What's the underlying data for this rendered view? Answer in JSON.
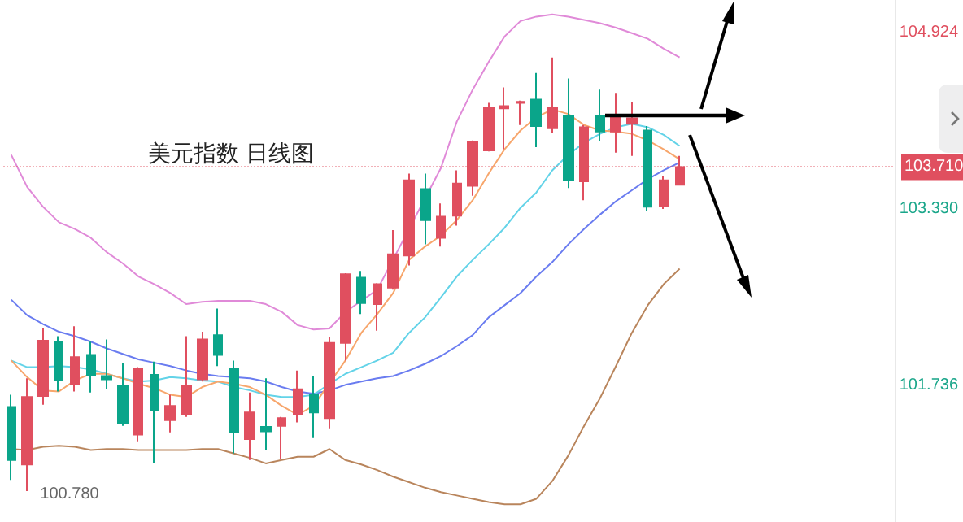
{
  "chart_data": {
    "type": "candlestick",
    "title": "美元指数 日线图",
    "categories": [
      null,
      null,
      null,
      null,
      null,
      null,
      null,
      null,
      null,
      null,
      null,
      null,
      null,
      null,
      null,
      null,
      null,
      null,
      null,
      null,
      null,
      null,
      null,
      null,
      null,
      null,
      null,
      null,
      null,
      null,
      null,
      null,
      null,
      null,
      null,
      null,
      null,
      null,
      null,
      null,
      null,
      null,
      null,
      null,
      null,
      null,
      null,
      null,
      null,
      null,
      null,
      null,
      null,
      null,
      null,
      null
    ],
    "ohlc": [
      [
        101.54,
        101.65,
        100.88,
        101.06
      ],
      [
        101.02,
        101.8,
        100.78,
        101.63
      ],
      [
        101.64,
        102.25,
        101.56,
        102.14
      ],
      [
        102.13,
        102.18,
        101.68,
        101.78
      ],
      [
        101.75,
        102.27,
        101.68,
        101.99
      ],
      [
        102.01,
        102.13,
        101.67,
        101.83
      ],
      [
        101.82,
        102.15,
        101.7,
        101.79
      ],
      [
        101.73,
        101.94,
        101.37,
        101.39
      ],
      [
        101.29,
        101.9,
        101.23,
        101.89
      ],
      [
        101.83,
        101.95,
        101.03,
        101.51
      ],
      [
        101.42,
        101.65,
        101.31,
        101.55
      ],
      [
        101.47,
        102.18,
        101.45,
        101.73
      ],
      [
        101.79,
        102.22,
        101.77,
        102.15
      ],
      [
        102.19,
        102.43,
        101.91,
        102.01
      ],
      [
        101.89,
        101.96,
        101.12,
        101.31
      ],
      [
        101.25,
        101.67,
        101.06,
        101.49
      ],
      [
        101.36,
        101.8,
        101.15,
        101.32
      ],
      [
        101.37,
        101.45,
        101.07,
        101.44
      ],
      [
        101.47,
        101.87,
        101.4,
        101.7
      ],
      [
        101.65,
        101.82,
        101.26,
        101.49
      ],
      [
        101.44,
        102.17,
        101.34,
        102.12
      ],
      [
        102.12,
        102.75,
        101.96,
        102.74
      ],
      [
        102.71,
        102.77,
        102.38,
        102.48
      ],
      [
        102.47,
        102.66,
        102.23,
        102.65
      ],
      [
        102.62,
        103.14,
        102.6,
        102.92
      ],
      [
        102.91,
        103.65,
        102.82,
        103.59
      ],
      [
        103.51,
        103.65,
        103.01,
        103.23
      ],
      [
        103.07,
        103.38,
        102.99,
        103.26
      ],
      [
        103.27,
        103.68,
        103.18,
        103.56
      ],
      [
        103.54,
        103.95,
        103.45,
        103.94
      ],
      [
        103.86,
        104.29,
        103.85,
        104.25
      ],
      [
        104.24,
        104.43,
        103.87,
        104.26
      ],
      [
        104.29,
        104.31,
        104.09,
        104.3
      ],
      [
        104.32,
        104.56,
        103.89,
        104.08
      ],
      [
        104.06,
        104.7,
        104.02,
        104.25
      ],
      [
        104.17,
        104.51,
        103.52,
        103.59
      ],
      [
        103.58,
        104.09,
        103.41,
        104.07
      ],
      [
        104.17,
        104.41,
        103.94,
        104.03
      ],
      [
        104.03,
        104.38,
        103.84,
        104.17
      ],
      [
        104.1,
        104.3,
        103.81,
        104.15
      ],
      [
        104.04,
        104.08,
        103.31,
        103.35
      ],
      [
        103.36,
        103.63,
        103.33,
        103.59
      ],
      [
        103.55,
        103.81,
        103.55,
        103.71
      ],
      null,
      null,
      null,
      null,
      null,
      null,
      null,
      null,
      null,
      null,
      null,
      null,
      null
    ],
    "colors": [
      "#0aa58a",
      "#e04f5f",
      "#e04f5f",
      "#0aa58a",
      "#e04f5f",
      "#0aa58a",
      "#0aa58a",
      "#0aa58a",
      "#e04f5f",
      "#0aa58a",
      "#e04f5f",
      "#e04f5f",
      "#e04f5f",
      "#0aa58a",
      "#0aa58a",
      "#e04f5f",
      "#0aa58a",
      "#e04f5f",
      "#e04f5f",
      "#0aa58a",
      "#e04f5f",
      "#e04f5f",
      "#0aa58a",
      "#e04f5f",
      "#e04f5f",
      "#e04f5f",
      "#0aa58a",
      "#e04f5f",
      "#e04f5f",
      "#e04f5f",
      "#e04f5f",
      "#e04f5f",
      "#e04f5f",
      "#0aa58a",
      "#e04f5f",
      "#0aa58a",
      "#e04f5f",
      "#0aa58a",
      "#e04f5f",
      "#e04f5f",
      "#0aa58a",
      "#e04f5f",
      "#e04f5f",
      null,
      null,
      null,
      null,
      null,
      null,
      null,
      null,
      null,
      null,
      null,
      null,
      null
    ],
    "series": [
      {
        "type": "line",
        "color": "#e08ad8",
        "values": [
          103.82,
          103.53,
          103.35,
          103.21,
          103.15,
          103.07,
          102.94,
          102.84,
          102.72,
          102.65,
          102.57,
          102.47,
          102.49,
          102.5,
          102.5,
          102.5,
          102.47,
          102.4,
          102.28,
          102.24,
          102.25,
          102.4,
          102.5,
          102.6,
          null,
          null,
          null,
          103.7,
          104.12,
          104.41,
          104.66,
          104.89,
          105.03,
          105.07,
          105.09,
          105.07,
          105.04,
          105.01,
          104.97,
          104.92,
          104.87,
          104.78,
          104.7,
          null,
          null,
          null,
          null,
          null,
          null,
          null,
          null,
          null,
          null,
          null,
          null,
          null
        ]
      },
      {
        "type": "line",
        "color": "#b9855c",
        "values": [
          101.16,
          101.15,
          101.18,
          101.19,
          101.18,
          101.15,
          101.16,
          101.16,
          101.15,
          101.15,
          101.15,
          101.15,
          101.16,
          101.16,
          101.12,
          101.08,
          101.03,
          101.06,
          101.09,
          101.09,
          101.16,
          101.06,
          101.02,
          100.97,
          100.91,
          100.86,
          100.81,
          100.77,
          100.74,
          100.71,
          100.68,
          100.66,
          100.66,
          100.71,
          100.87,
          101.1,
          101.37,
          101.62,
          101.91,
          102.21,
          102.46,
          102.65,
          102.79,
          null,
          null,
          null,
          null,
          null,
          null,
          null,
          null,
          null,
          null,
          null,
          null,
          null
        ]
      },
      {
        "type": "line",
        "color": "#6a7cf0",
        "values": [
          102.51,
          102.37,
          102.29,
          102.22,
          102.18,
          102.13,
          102.07,
          102.02,
          101.97,
          101.94,
          101.91,
          101.87,
          101.84,
          101.82,
          101.81,
          101.8,
          101.77,
          101.72,
          101.68,
          101.66,
          101.69,
          101.74,
          101.77,
          101.8,
          101.82,
          101.87,
          101.93,
          102.0,
          102.09,
          102.19,
          102.35,
          102.46,
          102.57,
          102.72,
          102.85,
          103.01,
          103.15,
          103.28,
          103.4,
          103.5,
          103.6,
          103.68,
          103.75,
          null,
          null,
          null,
          null,
          null,
          null,
          null,
          null,
          null,
          null,
          null,
          null,
          null
        ]
      },
      {
        "type": "line",
        "color": "#63d3e8",
        "values": [
          101.96,
          101.9,
          101.9,
          101.91,
          101.9,
          101.88,
          101.84,
          101.8,
          101.77,
          101.78,
          101.81,
          101.8,
          101.78,
          101.77,
          101.72,
          101.69,
          101.65,
          101.63,
          101.63,
          101.65,
          101.75,
          101.84,
          101.9,
          101.96,
          102.03,
          102.21,
          102.35,
          102.53,
          102.72,
          102.87,
          103.01,
          103.16,
          103.34,
          103.48,
          103.68,
          103.82,
          103.93,
          104.01,
          104.07,
          104.1,
          104.07,
          104.0,
          103.9,
          null,
          null,
          null,
          null,
          null,
          null,
          null,
          null,
          null,
          null,
          null,
          null,
          null
        ]
      },
      {
        "type": "line",
        "color": "#f7a66c",
        "values": [
          101.96,
          101.81,
          101.69,
          101.68,
          101.78,
          101.84,
          101.84,
          101.8,
          101.75,
          101.71,
          101.65,
          101.63,
          101.72,
          101.77,
          101.75,
          101.72,
          101.65,
          101.55,
          101.47,
          101.55,
          null,
          101.96,
          102.21,
          102.38,
          102.57,
          102.87,
          102.99,
          103.09,
          103.23,
          103.41,
          103.65,
          103.87,
          104.04,
          104.16,
          104.23,
          104.19,
          104.09,
          104.04,
          104.03,
          104.01,
          103.95,
          103.87,
          103.78,
          null,
          null,
          null,
          null,
          null,
          null,
          null,
          null,
          null,
          null,
          null,
          null,
          null
        ]
      }
    ],
    "ylim": [
      100.5,
      105.22
    ],
    "yticks": [
      {
        "value": 101.736,
        "label": "101.736"
      },
      {
        "value": 103.33,
        "label": "103.330"
      },
      {
        "value": 104.924,
        "label": "104.924"
      }
    ],
    "ref_lines": [
      {
        "axis": "y",
        "value": 103.71,
        "label": "103.710",
        "color": "#e04f5f",
        "line_style": "dotted"
      }
    ],
    "annotations": [
      "100.780"
    ],
    "tick_labels": "y",
    "grid": false,
    "marker": "none"
  }
}
